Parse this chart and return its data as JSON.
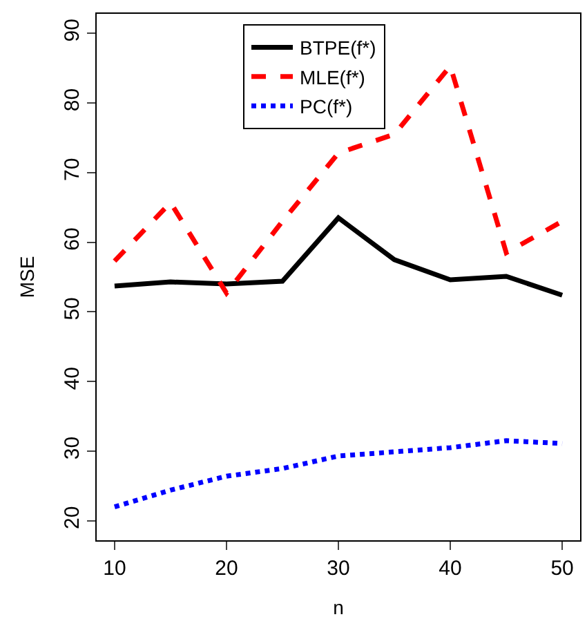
{
  "chart_data": {
    "type": "line",
    "xlabel": "n",
    "ylabel": "MSE",
    "x": [
      10,
      15,
      20,
      25,
      30,
      35,
      40,
      45,
      50
    ],
    "xlim": [
      8.4,
      51.6
    ],
    "xticks": [
      10,
      20,
      30,
      40,
      50
    ],
    "ylim": [
      17.2,
      92.8
    ],
    "yticks": [
      20,
      30,
      40,
      50,
      60,
      70,
      80,
      90
    ],
    "legend": "top",
    "marker": "none",
    "series": [
      {
        "name": "BTPE(f*)",
        "color": "#000000",
        "line_style": "solid",
        "values": [
          53.7,
          54.3,
          54.0,
          54.4,
          63.5,
          57.5,
          54.6,
          55.1,
          52.4
        ]
      },
      {
        "name": "MLE(f*)",
        "color": "#ff0000",
        "line_style": "dashed",
        "values": [
          57.3,
          65.7,
          52.7,
          63.0,
          72.8,
          75.5,
          85.3,
          58.5,
          63.0
        ]
      },
      {
        "name": "PC(f*)",
        "color": "#0000ff",
        "line_style": "dotted",
        "values": [
          22.0,
          24.4,
          26.4,
          27.5,
          29.3,
          29.9,
          30.5,
          31.5,
          31.1
        ]
      }
    ]
  }
}
